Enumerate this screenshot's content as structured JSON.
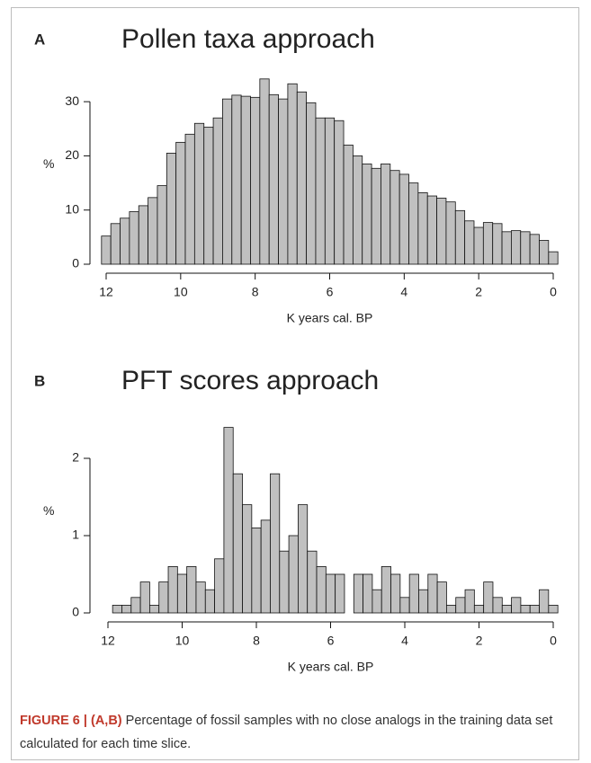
{
  "chart_data": [
    {
      "type": "histogram",
      "panel": "A",
      "title": "Pollen taxa approach",
      "ylabel": "%",
      "xlabel": "K years cal. BP",
      "bins": [
        12.125,
        11.875,
        11.625,
        11.375,
        11.125,
        10.875,
        10.625,
        10.375,
        10.125,
        9.875,
        9.625,
        9.375,
        9.125,
        8.875,
        8.625,
        8.375,
        8.125,
        7.875,
        7.625,
        7.375,
        7.125,
        6.875,
        6.625,
        6.375,
        6.125,
        5.875,
        5.625,
        5.375,
        5.125,
        4.875,
        4.625,
        4.375,
        4.125,
        3.875,
        3.625,
        3.375,
        3.125,
        2.875,
        2.625,
        2.375,
        2.125,
        1.875,
        1.625,
        1.375,
        1.125,
        0.875,
        0.625,
        0.375,
        0.125,
        -0.125
      ],
      "values": [
        5.2,
        7.5,
        8.5,
        9.7,
        10.8,
        12.3,
        14.5,
        20.5,
        22.5,
        24,
        26,
        25.3,
        27,
        30.5,
        31.2,
        31,
        30.8,
        34.2,
        31.3,
        30.5,
        33.3,
        31.8,
        29.8,
        27,
        27,
        26.5,
        22,
        20,
        18.5,
        17.7,
        18.5,
        17.3,
        16.6,
        15,
        13.2,
        12.6,
        12.2,
        11.5,
        9.9,
        8,
        6.8,
        7.7,
        7.5,
        6,
        6.2,
        6,
        5.5,
        4.4,
        2.3
      ],
      "color": "#c0c0c0",
      "xlim": [
        12,
        0
      ],
      "xticks": [
        12,
        10,
        8,
        6,
        4,
        2,
        0
      ],
      "ylim": [
        0,
        35
      ],
      "yticks": [
        0,
        10,
        20,
        30
      ]
    },
    {
      "type": "histogram",
      "panel": "B",
      "title": "PFT scores approach",
      "ylabel": "%",
      "xlabel": "K years cal. BP",
      "bins": [
        12.125,
        11.875,
        11.625,
        11.375,
        11.125,
        10.875,
        10.625,
        10.375,
        10.125,
        9.875,
        9.625,
        9.375,
        9.125,
        8.875,
        8.625,
        8.375,
        8.125,
        7.875,
        7.625,
        7.375,
        7.125,
        6.875,
        6.625,
        6.375,
        6.125,
        5.875,
        5.625,
        5.375,
        5.125,
        4.875,
        4.625,
        4.375,
        4.125,
        3.875,
        3.625,
        3.375,
        3.125,
        2.875,
        2.625,
        2.375,
        2.125,
        1.875,
        1.625,
        1.375,
        1.125,
        0.875,
        0.625,
        0.375,
        0.125,
        -0.125
      ],
      "values": [
        0,
        0.1,
        0.1,
        0.2,
        0.4,
        0.1,
        0.4,
        0.6,
        0.5,
        0.6,
        0.4,
        0.3,
        0.7,
        2.4,
        1.8,
        1.4,
        1.1,
        1.2,
        1.8,
        0.8,
        1.0,
        1.4,
        0.8,
        0.6,
        0.5,
        0.5,
        0,
        0.5,
        0.5,
        0.3,
        0.6,
        0.5,
        0.2,
        0.5,
        0.3,
        0.5,
        0.4,
        0.1,
        0.2,
        0.3,
        0.1,
        0.4,
        0.2,
        0.1,
        0.2,
        0.1,
        0.1,
        0.3,
        0.1
      ],
      "color": "#c0c0c0",
      "xlim": [
        12,
        0
      ],
      "xticks": [
        12,
        10,
        8,
        6,
        4,
        2,
        0
      ],
      "ylim": [
        0,
        2.5
      ],
      "yticks": [
        0,
        1,
        2
      ]
    }
  ],
  "caption": {
    "label": "FIGURE 6 | (A,B)",
    "text": "Percentage of fossil samples with no close analogs in the training data set calculated for each time slice."
  }
}
